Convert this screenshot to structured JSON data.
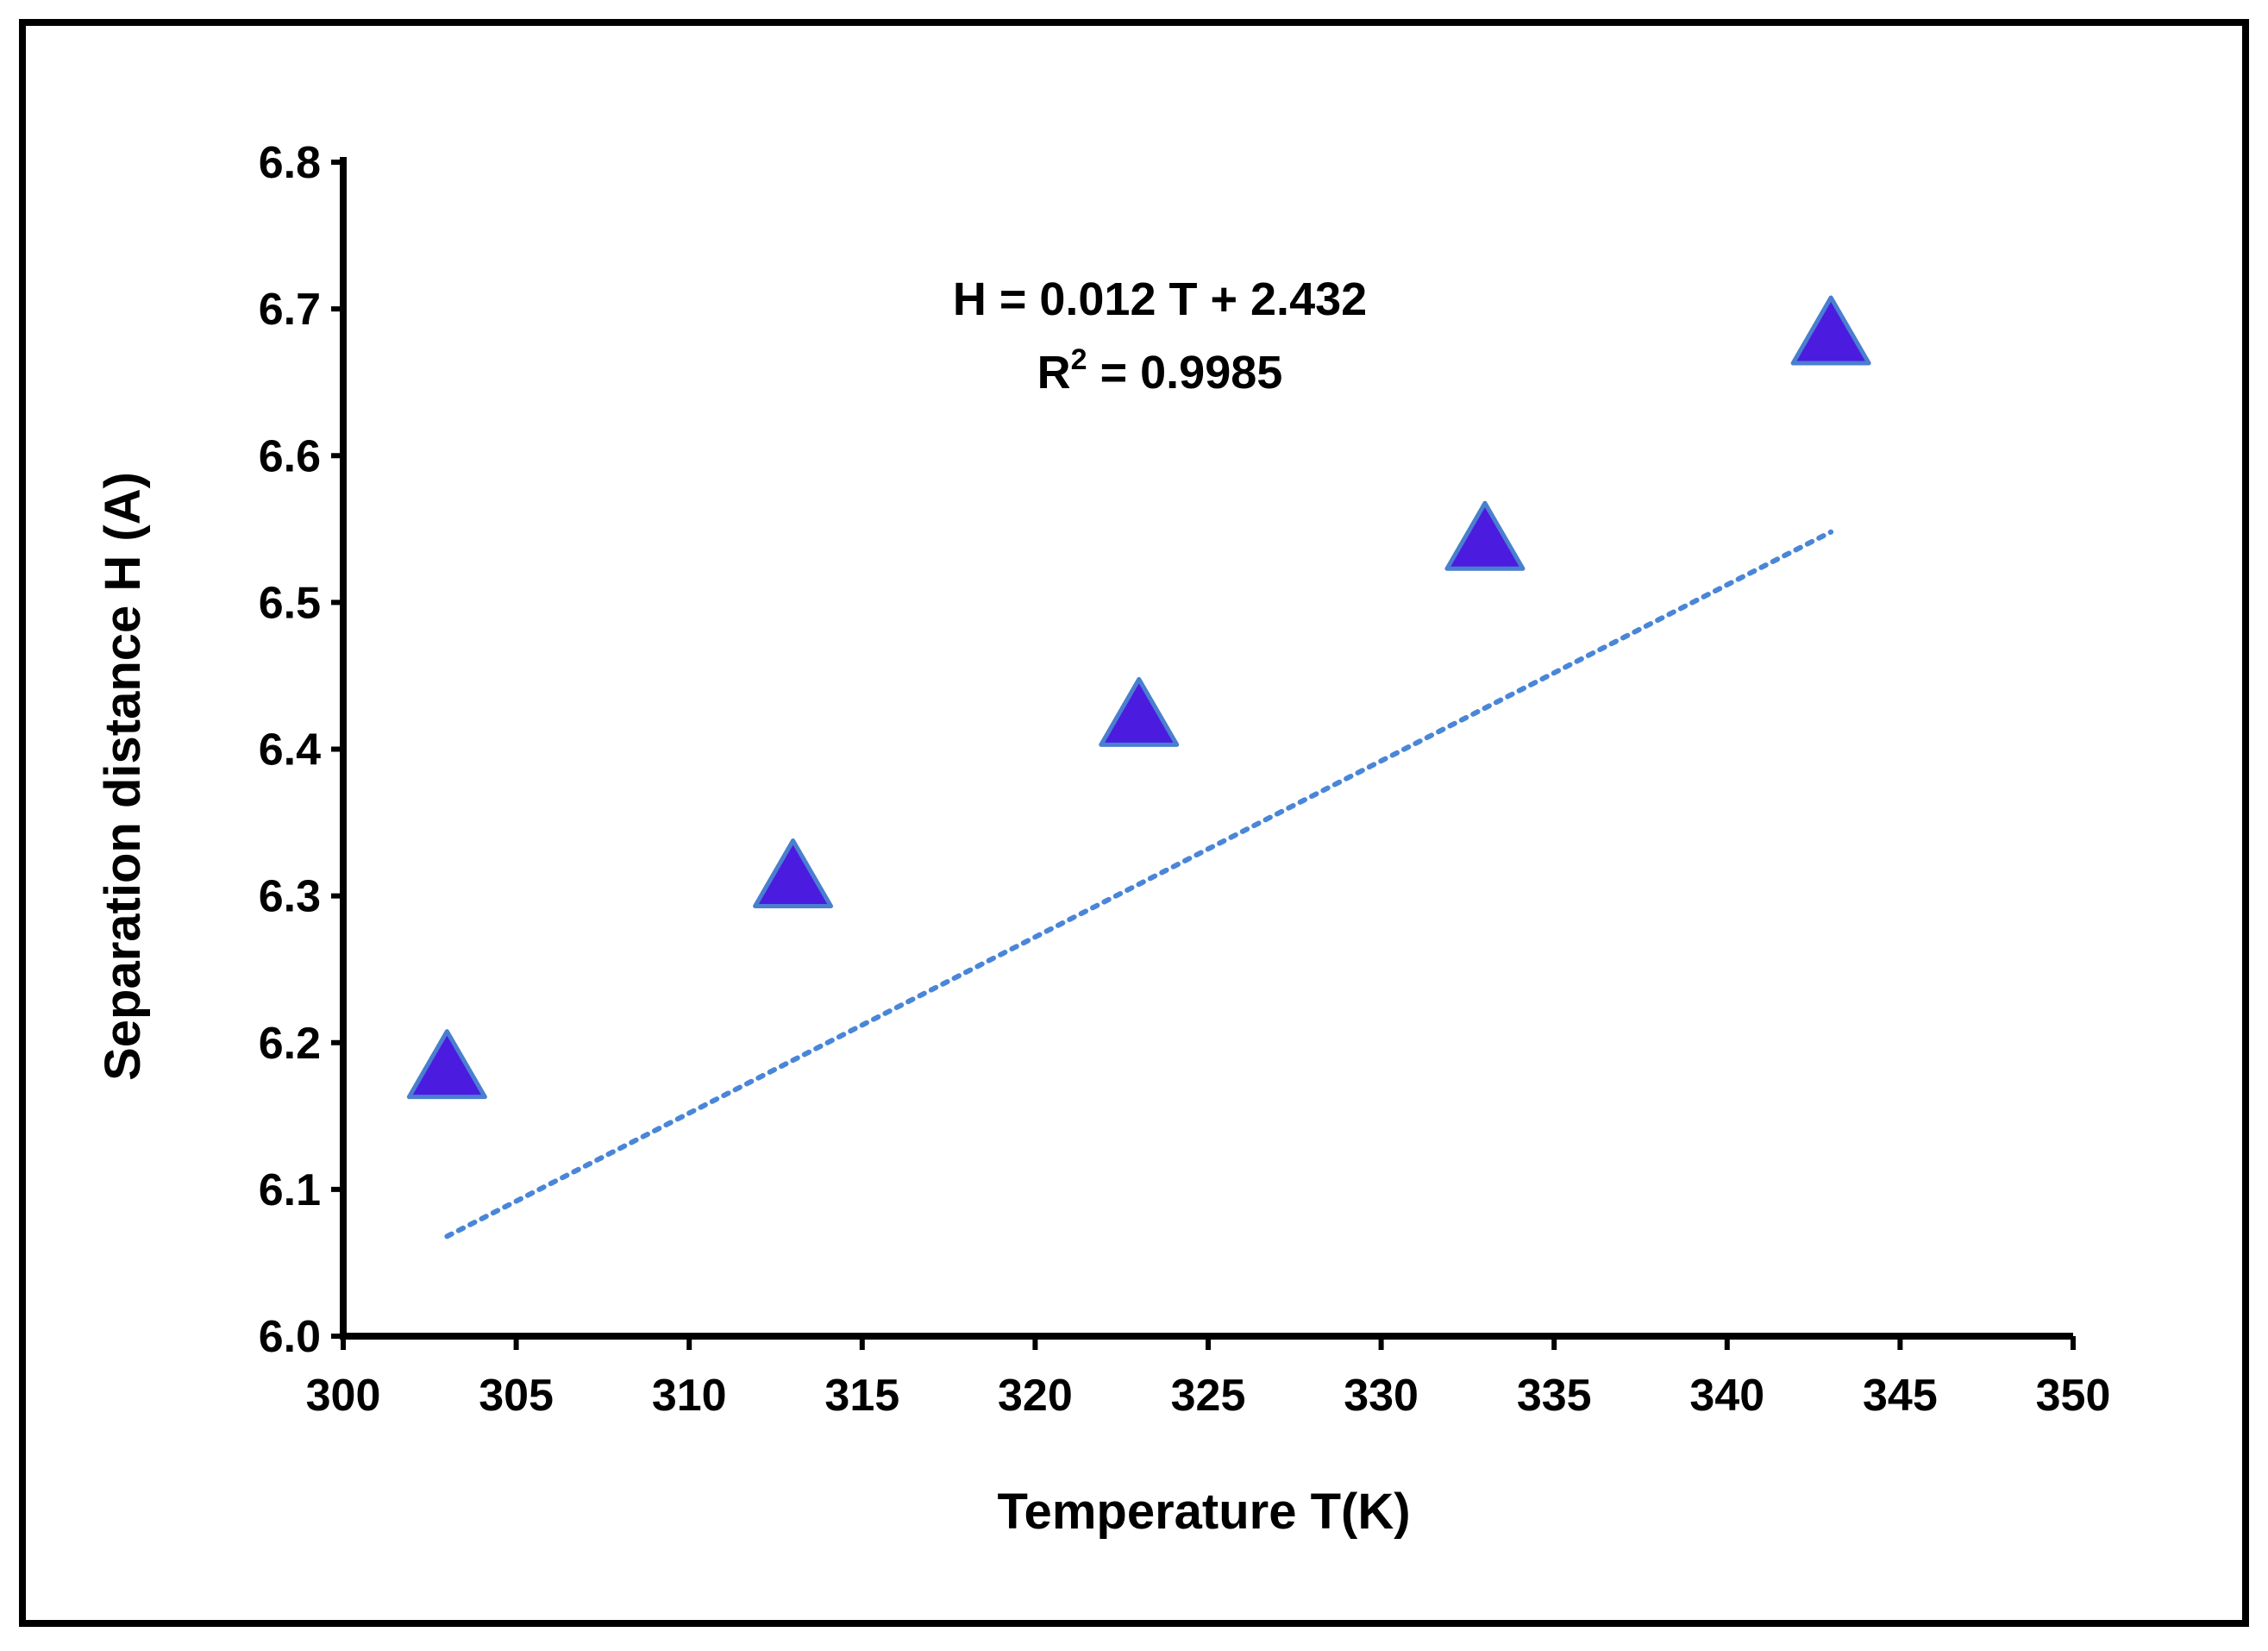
{
  "chart_data": {
    "type": "scatter",
    "title": "",
    "xlabel": "Temperature T(K)",
    "ylabel": "Separation distance H (A)",
    "xlim": [
      300,
      350
    ],
    "ylim": [
      6.0,
      6.8
    ],
    "xticks": [
      "300",
      "305",
      "310",
      "315",
      "320",
      "325",
      "330",
      "335",
      "340",
      "345",
      "350"
    ],
    "yticks": [
      "6.0",
      "6.1",
      "6.2",
      "6.3",
      "6.4",
      "6.5",
      "6.6",
      "6.7",
      "6.8"
    ],
    "grid": false,
    "series": [
      {
        "name": "H",
        "marker": "triangle",
        "color": "#4B1BE0",
        "edge_color": "#4A7FD0",
        "x": [
          303,
          313,
          323,
          333,
          343
        ],
        "y": [
          6.18,
          6.31,
          6.42,
          6.54,
          6.68
        ]
      }
    ],
    "trendline": {
      "style": "dotted",
      "color": "#4A86D8",
      "slope": 0.012,
      "intercept": 2.432,
      "x_range": [
        303,
        343
      ]
    },
    "annotation": {
      "equation": "H = 0.012 T + 2.432",
      "r2_prefix": "R",
      "r2_sup": "2",
      "r2_value": " = 0.9985"
    }
  }
}
